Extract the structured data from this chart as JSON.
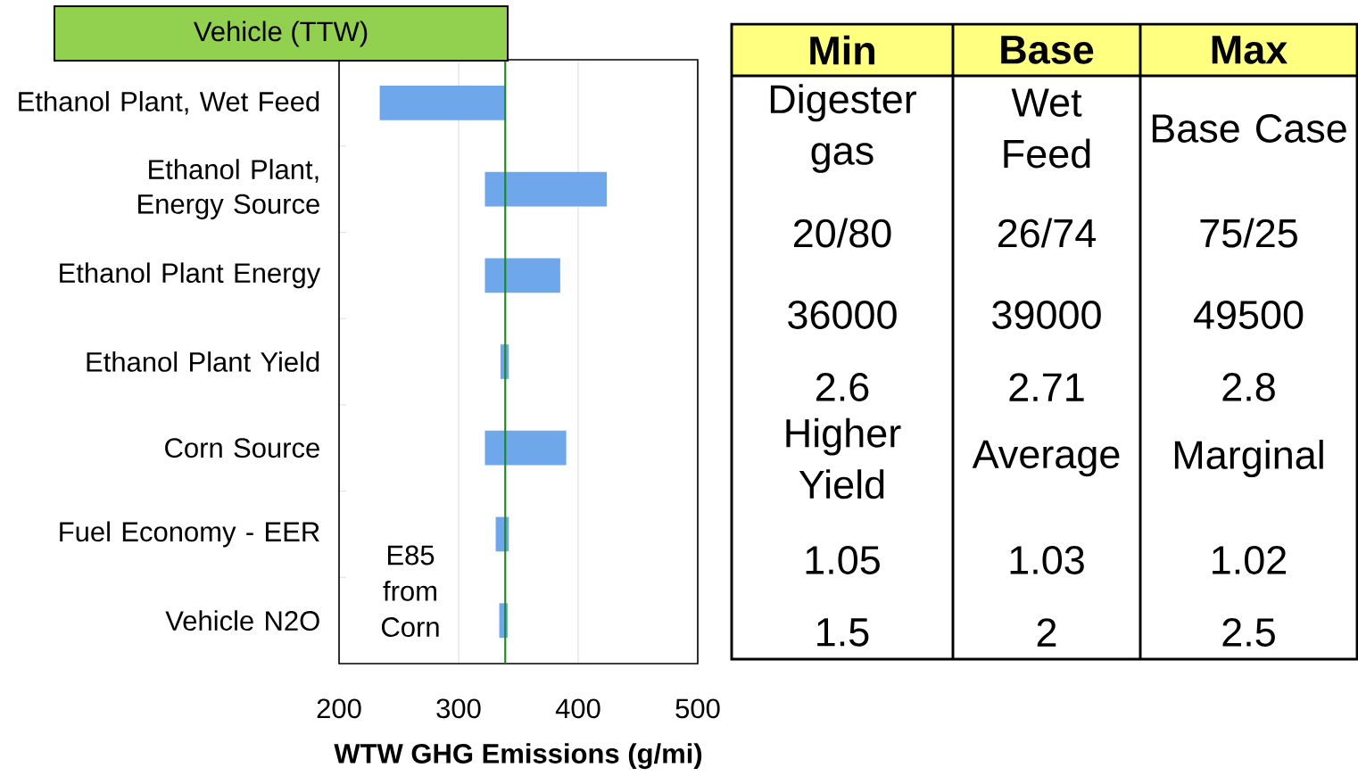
{
  "chart_data": [
    {
      "type": "bar",
      "orientation": "horizontal",
      "title": "Vehicle (TTW)",
      "xlabel": "WTW GHG Emissions (g/mi)",
      "categories": [
        "Ethanol Plant, Wet Feed",
        "Ethanol Plant, Energy Source",
        "Ethanol Plant Energy",
        "Ethanol Plant Yield",
        "Corn Source",
        "Fuel Economy - EER",
        "Vehicle N2O"
      ],
      "base": [
        234,
        322,
        322,
        335,
        322,
        331,
        334
      ],
      "values": [
        105,
        102,
        63,
        7,
        68,
        11,
        7
      ],
      "color": "#6fa8ea",
      "xlim": [
        200,
        500
      ],
      "xticks": [
        200,
        300,
        400,
        500
      ],
      "grid": "x",
      "ref_lines": [
        {
          "axis": "x",
          "value": 339,
          "color": "#1a8a1a"
        }
      ],
      "annotations": [
        "E85 from Corn"
      ]
    },
    {
      "type": "other",
      "categories": [
        "Min",
        "Base",
        "Max"
      ],
      "color": "#ffff80",
      "annotations": [
        "Digester gas",
        "Wet Feed",
        "Base Case",
        "20/80",
        "26/74",
        "75/25",
        "36000",
        "39000",
        "49500",
        "2.6",
        "2.71",
        "2.8",
        "Higher Yield",
        "Average",
        "Marginal",
        "1.05",
        "1.03",
        "1.02",
        "1.5",
        "2",
        "2.5"
      ]
    }
  ]
}
